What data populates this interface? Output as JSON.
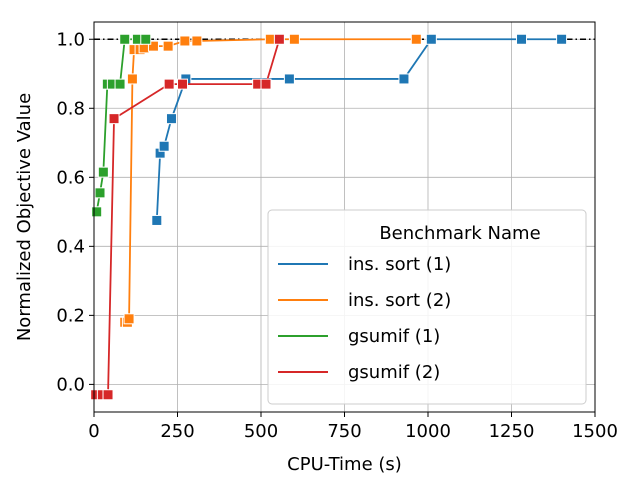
{
  "chart_data": {
    "type": "line",
    "xlabel": "CPU-Time (s)",
    "ylabel": "Normalized Objective Value",
    "xlim": [
      0,
      1500
    ],
    "ylim": [
      -0.08,
      1.05
    ],
    "xticks": [
      0,
      250,
      500,
      750,
      1000,
      1250,
      1500
    ],
    "xtick_labels": [
      "0",
      "250",
      "500",
      "750",
      "1000",
      "1250",
      "1500"
    ],
    "yticks": [
      0.0,
      0.2,
      0.4,
      0.6,
      0.8,
      1.0
    ],
    "ytick_labels": [
      "0.0",
      "0.2",
      "0.4",
      "0.6",
      "0.8",
      "1.0"
    ],
    "grid": true,
    "reference_line": {
      "y": 1.0,
      "style": "dash-dot",
      "color": "#000000"
    },
    "legend": {
      "title": "Benchmark Name",
      "placement": "lower-right"
    },
    "series": [
      {
        "name": "ins. sort (1)",
        "color": "#1f77b4",
        "marker": "square",
        "points": [
          [
            188,
            0.475
          ],
          [
            198,
            0.67
          ],
          [
            210,
            0.69
          ],
          [
            232,
            0.77
          ],
          [
            275,
            0.885
          ],
          [
            585,
            0.885
          ],
          [
            928,
            0.885
          ],
          [
            1010,
            1.0
          ],
          [
            1280,
            1.0
          ],
          [
            1400,
            1.0
          ]
        ]
      },
      {
        "name": "ins. sort (2)",
        "color": "#ff7f0e",
        "marker": "square",
        "points": [
          [
            92,
            0.18
          ],
          [
            100,
            0.18
          ],
          [
            105,
            0.19
          ],
          [
            115,
            0.885
          ],
          [
            120,
            0.97
          ],
          [
            138,
            0.97
          ],
          [
            150,
            0.975
          ],
          [
            178,
            0.98
          ],
          [
            222,
            0.98
          ],
          [
            272,
            0.995
          ],
          [
            308,
            0.995
          ],
          [
            528,
            1.0
          ],
          [
            600,
            1.0
          ],
          [
            965,
            1.0
          ]
        ]
      },
      {
        "name": "gsumif (1)",
        "color": "#2ca02c",
        "marker": "square",
        "points": [
          [
            8,
            0.5
          ],
          [
            18,
            0.555
          ],
          [
            28,
            0.615
          ],
          [
            40,
            0.87
          ],
          [
            55,
            0.87
          ],
          [
            78,
            0.87
          ],
          [
            92,
            1.0
          ],
          [
            130,
            1.0
          ],
          [
            155,
            1.0
          ]
        ]
      },
      {
        "name": "gsumif (2)",
        "color": "#d62728",
        "marker": "square",
        "points": [
          [
            5,
            -0.03
          ],
          [
            25,
            -0.03
          ],
          [
            42,
            -0.03
          ],
          [
            60,
            0.77
          ],
          [
            225,
            0.87
          ],
          [
            265,
            0.87
          ],
          [
            490,
            0.87
          ],
          [
            515,
            0.87
          ],
          [
            555,
            1.0
          ]
        ]
      }
    ]
  }
}
